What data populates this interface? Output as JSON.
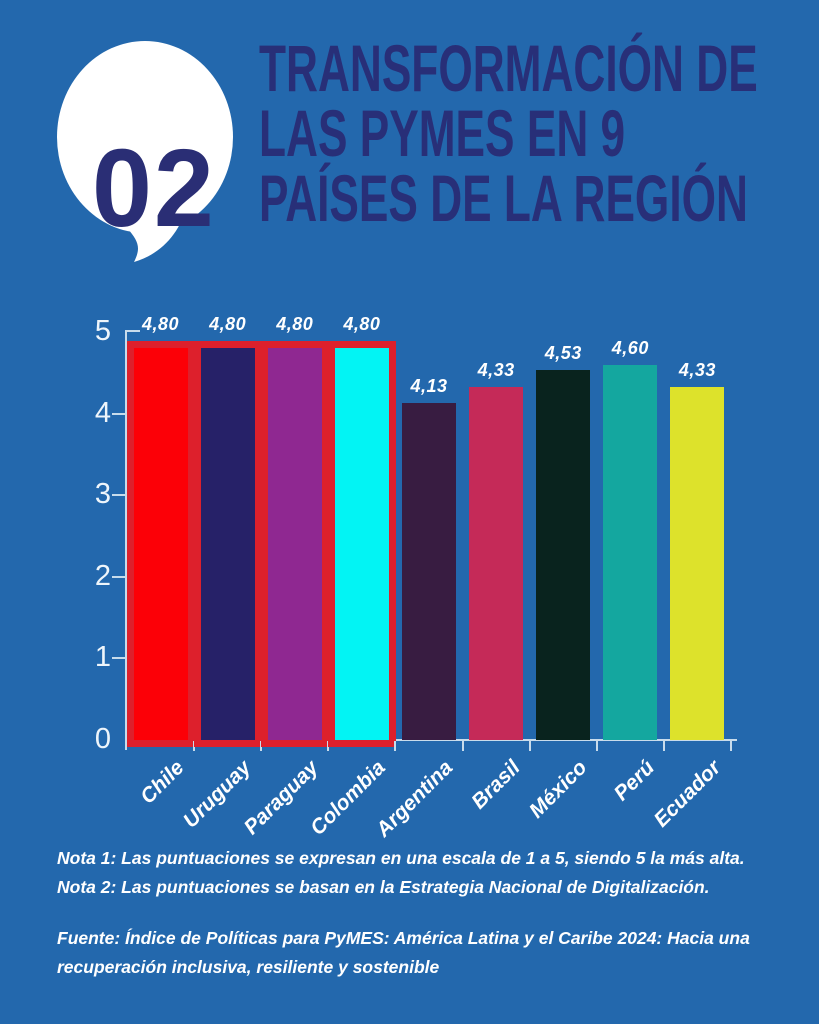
{
  "page": {
    "bg_color": "#2368ad"
  },
  "header": {
    "badge_number": "02",
    "title_lines": [
      "TRANSFORMACIÓN DE",
      "LAS PYMES EN 9",
      "PAÍSES DE LA REGIÓN"
    ],
    "title_color": "#282f78",
    "badge_color": "#ffffff"
  },
  "chart_data": {
    "type": "bar",
    "categories": [
      "Chile",
      "Uruguay",
      "Paraguay",
      "Colombia",
      "Argentina",
      "Brasil",
      "México",
      "Perú",
      "Ecuador"
    ],
    "values": [
      4.8,
      4.8,
      4.8,
      4.8,
      4.13,
      4.33,
      4.53,
      4.6,
      4.33
    ],
    "value_labels": [
      "4,80",
      "4,80",
      "4,80",
      "4,80",
      "4,13",
      "4,33",
      "4,53",
      "4,60",
      "4,33"
    ],
    "bar_colors": [
      "#fc0007",
      "#262168",
      "#8f2891",
      "#02f4f4",
      "#381c41",
      "#c52a58",
      "#09231e",
      "#14a79f",
      "#dde22b"
    ],
    "highlighted": [
      true,
      true,
      true,
      true,
      false,
      false,
      false,
      false,
      false
    ],
    "highlight_color": "#dd202c",
    "axis_color": "#c8dcec",
    "title": "",
    "xlabel": "",
    "ylabel": "",
    "ylim": [
      0,
      5
    ],
    "yticks": [
      0,
      1,
      2,
      3,
      4,
      5
    ],
    "grid": false,
    "legend": null
  },
  "notes": {
    "nota1": "Nota 1: Las puntuaciones se expresan en una escala de 1 a 5, siendo 5 la más alta.",
    "nota2": "Nota 2: Las puntuaciones se basan en la Estrategia Nacional de Digitalización.",
    "fuente": "Fuente: Índice de Políticas para PyMES: América Latina y el Caribe 2024: Hacia una recuperación inclusiva, resiliente y sostenible"
  }
}
